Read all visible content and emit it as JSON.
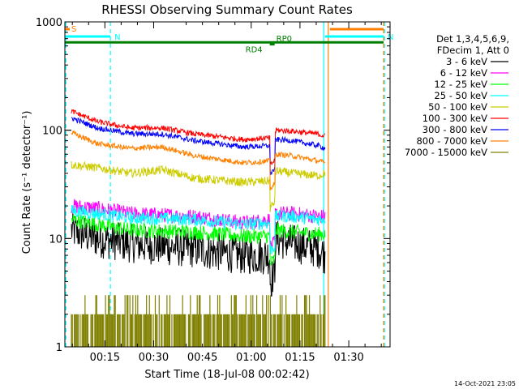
{
  "chart_data": {
    "type": "line",
    "title": "RHESSI Observing Summary Count Rates",
    "xlabel": "Start Time (18-Jul-08 00:02:42)",
    "ylabel": "Count Rate (s⁻¹ detector⁻¹)",
    "yscale": "log",
    "ylim": [
      1,
      1000
    ],
    "xlim_minutes": [
      0,
      100
    ],
    "x_unit": "minutes",
    "grid": false,
    "legend_placement": "right",
    "legend_header": [
      "Det 1,3,4,5,6,9,",
      "FDecim 1, Att 0"
    ],
    "x_ticks": [
      {
        "minute": 12.3,
        "label": "00:15"
      },
      {
        "minute": 27.3,
        "label": "00:30"
      },
      {
        "minute": 42.3,
        "label": "00:45"
      },
      {
        "minute": 57.3,
        "label": "01:00"
      },
      {
        "minute": 72.3,
        "label": "01:15"
      },
      {
        "minute": 87.3,
        "label": "01:30"
      }
    ],
    "y_ticks": [
      {
        "value": 1,
        "label": "1"
      },
      {
        "value": 10,
        "label": "10"
      },
      {
        "value": 100,
        "label": "100"
      },
      {
        "value": 1000,
        "label": "1000"
      }
    ],
    "series": [
      {
        "name": "3 - 6 keV",
        "color": "#000000",
        "noise": 0.18,
        "x": [
          2,
          10,
          20,
          40,
          55,
          63,
          65,
          70,
          78,
          80
        ],
        "y": [
          12,
          10,
          9,
          8,
          7,
          7,
          10,
          9,
          8,
          7
        ]
      },
      {
        "name": "6 - 12 keV",
        "color": "#ff00ff",
        "noise": 0.07,
        "x": [
          2,
          10,
          20,
          40,
          55,
          63,
          65,
          70,
          78,
          80
        ],
        "y": [
          20,
          19,
          17,
          16,
          14,
          15,
          17,
          17,
          16,
          16
        ]
      },
      {
        "name": "12 - 25 keV",
        "color": "#00ff00",
        "noise": 0.07,
        "x": [
          2,
          10,
          20,
          40,
          55,
          63,
          65,
          70,
          78,
          80
        ],
        "y": [
          15,
          13.5,
          12,
          11.5,
          10.5,
          10.5,
          12,
          11.5,
          11,
          11
        ]
      },
      {
        "name": "25 - 50 keV",
        "color": "#00ffff",
        "noise": 0.06,
        "x": [
          2,
          10,
          20,
          40,
          55,
          63,
          65,
          70,
          78,
          80
        ],
        "y": [
          18,
          17,
          15.5,
          15,
          13.5,
          14,
          16,
          16,
          15,
          15.5
        ]
      },
      {
        "name": "50 - 100 keV",
        "color": "#cccc00",
        "noise": 0.04,
        "x": [
          2,
          10,
          20,
          30,
          40,
          55,
          63,
          65,
          70,
          78,
          80
        ],
        "y": [
          48,
          45,
          40,
          43,
          36,
          33,
          34,
          42,
          40,
          38,
          40
        ]
      },
      {
        "name": "100 - 300 keV",
        "color": "#ff0000",
        "noise": 0.025,
        "x": [
          2,
          10,
          20,
          30,
          40,
          55,
          63,
          65,
          70,
          78,
          80
        ],
        "y": [
          150,
          120,
          105,
          105,
          92,
          82,
          85,
          100,
          98,
          92,
          88
        ]
      },
      {
        "name": "300 - 800 keV",
        "color": "#0000ff",
        "noise": 0.025,
        "x": [
          2,
          10,
          20,
          30,
          40,
          55,
          63,
          65,
          70,
          78,
          80
        ],
        "y": [
          130,
          105,
          93,
          92,
          80,
          70,
          72,
          82,
          80,
          72,
          68
        ]
      },
      {
        "name": "800 - 7000 keV",
        "color": "#ff8000",
        "noise": 0.025,
        "x": [
          2,
          10,
          20,
          30,
          40,
          55,
          63,
          65,
          70,
          78,
          80
        ],
        "y": [
          95,
          75,
          68,
          70,
          58,
          50,
          52,
          60,
          58,
          52,
          50
        ]
      },
      {
        "name": "7000 - 15000 keV",
        "color": "#808000",
        "noise": 0,
        "x": [
          2,
          80
        ],
        "y": [
          1,
          2
        ]
      }
    ],
    "flags": [
      {
        "label": "S",
        "color": "#ff8000",
        "x": [
          0,
          1.5
        ],
        "level": 1.5
      },
      {
        "label": "N",
        "color": "#00ffff",
        "x": [
          0,
          14
        ],
        "level": 3
      },
      {
        "label": "N",
        "color": "#00ffff",
        "x": [
          80,
          98
        ],
        "level": 3
      },
      {
        "label": "",
        "color": "#ff8000",
        "x": [
          81.5,
          98
        ],
        "level": 1.5
      },
      {
        "label": "RD4",
        "color": "#008000",
        "x": [
          63,
          64.5
        ],
        "level": 4.6
      },
      {
        "label": "RP0",
        "color": "#008000",
        "x": [
          0,
          98
        ],
        "level": 4.2
      }
    ],
    "v_lines": [
      {
        "color": "#00ffff",
        "x": 0.3,
        "dashed": true
      },
      {
        "color": "#00ffff",
        "x": 14,
        "dashed": true
      },
      {
        "color": "#00ffff",
        "x": 79.6,
        "dashed": false
      },
      {
        "color": "#ff8000",
        "x": 81,
        "dashed": false
      },
      {
        "color": "#ff8000",
        "x": 98,
        "dashed": true
      },
      {
        "color": "#00ffff",
        "x": 98.3,
        "dashed": true
      }
    ]
  },
  "timestamp": "14-Oct-2021 23:05"
}
